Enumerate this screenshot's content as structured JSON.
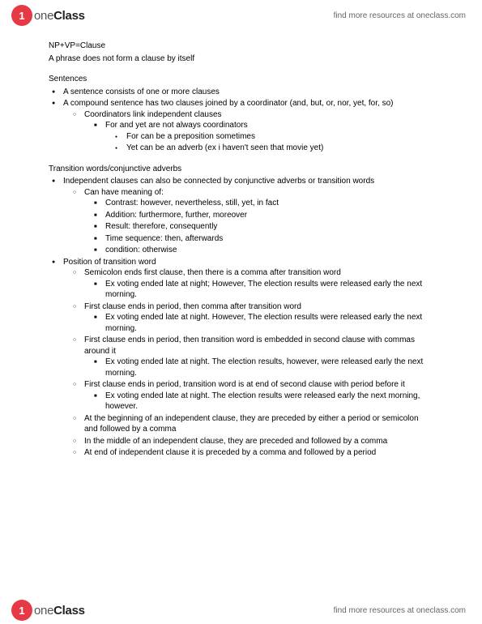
{
  "brand": {
    "circle": "1",
    "text_light": "one",
    "text_bold": "Class"
  },
  "find_more": "find more resources at oneclass.com",
  "intro": {
    "line1": "NP+VP=Clause",
    "line2": "A phrase does not form a clause by itself"
  },
  "s1": {
    "heading": "Sentences",
    "b1": "A sentence consists of one or more clauses",
    "b2": "A compound sentence has two clauses joined by a coordinator (and, but, or, nor, yet, for, so)",
    "b2a": "Coordinators link independent clauses",
    "b2a1": "For and yet are not always coordinators",
    "b2a1a": "For can be a preposition sometimes",
    "b2a1b": "Yet can be an adverb (ex i haven't seen that movie yet)"
  },
  "s2": {
    "heading": "Transition words/conjunctive adverbs",
    "b1": "Independent clauses can also be connected by conjunctive adverbs or transition words",
    "b1a": "Can have meaning of:",
    "b1a1": "Contrast: however, nevertheless, still, yet, in fact",
    "b1a2": "Addition: furthermore, further, moreover",
    "b1a3": "Result: therefore, consequently",
    "b1a4": "Time sequence: then, afterwards",
    "b1a5": "condition: otherwise",
    "b2": "Position of transition word",
    "b2a": "Semicolon ends first clause, then there is a comma after transition word",
    "b2a1": "Ex voting ended late at night; However, The election results were released early the next morning.",
    "b2b": "First clause ends in period, then comma after transition word",
    "b2b1": "Ex voting ended late at night. However, The election results were released early the next morning.",
    "b2c": "First clause ends in period, then transition word is embedded in second clause with commas around it",
    "b2c1": "Ex voting ended late at night. The election results, however, were released early the next morning.",
    "b2d": "First clause ends in period, transition word is at end of second clause with period before it",
    "b2d1": "Ex voting ended late at night. The election results were released early the next morning, however.",
    "b2e": "At the beginning of an independent clause, they are preceded by either a period or semicolon and followed by a comma",
    "b2f": "In the middle of an independent clause, they are preceded and followed by a comma",
    "b2g": "At end of independent clause it is preceded by a comma and followed by a period"
  }
}
